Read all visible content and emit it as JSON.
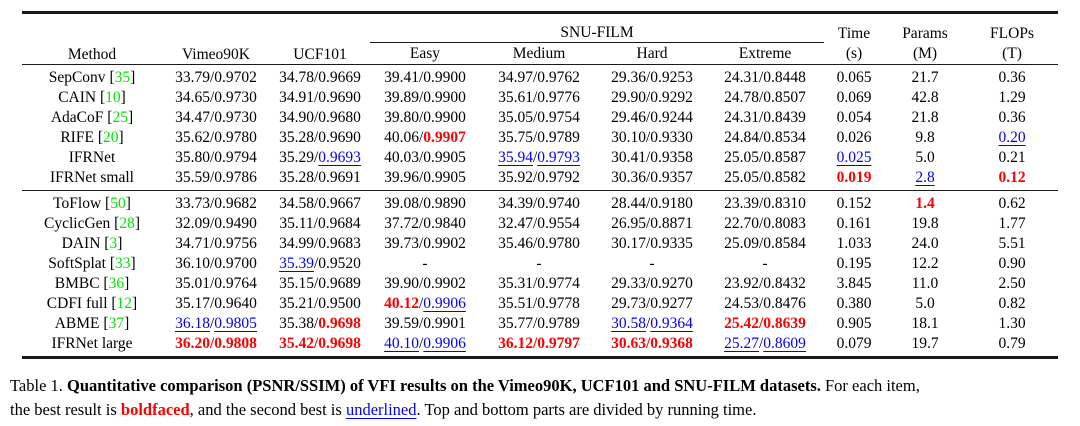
{
  "colors": {
    "best": "#fe0000",
    "second_best": "#0400f9",
    "citation": "#00e400"
  },
  "table": {
    "header": {
      "method": "Method",
      "vimeo90k": "Vimeo90K",
      "ucf101": "UCF101",
      "snufilm": "SNU-FILM",
      "sub": [
        "Easy",
        "Medium",
        "Hard",
        "Extreme"
      ],
      "time_line1": "Time",
      "time_line2": "(s)",
      "params_line1": "Params",
      "params_line2": "(M)",
      "flops_line1": "FLOPs",
      "flops_line2": "(T)"
    },
    "legend": {
      "b": "best (red bold)",
      "u": "second best (blue underlined)",
      "n": "normal"
    },
    "groups": [
      {
        "rows": [
          {
            "method": "SepConv",
            "cite": "35",
            "cells": [
              "33.79/0.9702",
              "34.78/0.9669",
              "39.41/0.9900",
              "34.97/0.9762",
              "29.36/0.9253",
              "24.31/0.8448",
              "0.065",
              "21.7",
              "0.36"
            ]
          },
          {
            "method": "CAIN",
            "cite": "10",
            "cells": [
              "34.65/0.9730",
              "34.91/0.9690",
              "39.89/0.9900",
              "35.61/0.9776",
              "29.90/0.9292",
              "24.78/0.8507",
              "0.069",
              "42.8",
              "1.29"
            ]
          },
          {
            "method": "AdaCoF",
            "cite": "25",
            "cells": [
              "34.47/0.9730",
              "34.90/0.9680",
              "39.80/0.9900",
              "35.05/0.9754",
              "29.46/0.9244",
              "24.31/0.8439",
              "0.054",
              "21.8",
              "0.36"
            ]
          },
          {
            "method": "RIFE",
            "cite": "20",
            "cells": [
              "35.62/0.9780",
              "35.28/0.9690",
              [
                [
                  "40.06/",
                  "n"
                ],
                [
                  "0.9907",
                  "b"
                ]
              ],
              "35.75/0.9789",
              "30.10/0.9330",
              "24.84/0.8534",
              "0.026",
              "9.8",
              [
                [
                  "0.20",
                  "u"
                ]
              ]
            ]
          },
          {
            "method": "IFRNet",
            "cite": null,
            "cells": [
              "35.80/0.9794",
              [
                [
                  "35.29/",
                  "n"
                ],
                [
                  "0.9693",
                  "u"
                ]
              ],
              "40.03/0.9905",
              [
                [
                  "35.94",
                  "u"
                ],
                [
                  "/",
                  "n"
                ],
                [
                  "0.9793",
                  "u"
                ]
              ],
              "30.41/0.9358",
              "25.05/0.8587",
              [
                [
                  "0.025",
                  "u"
                ]
              ],
              "5.0",
              "0.21"
            ]
          },
          {
            "method": "IFRNet small",
            "cite": null,
            "cells": [
              "35.59/0.9786",
              "35.28/0.9691",
              "39.96/0.9905",
              "35.92/0.9792",
              "30.36/0.9357",
              "25.05/0.8582",
              [
                [
                  "0.019",
                  "b"
                ]
              ],
              [
                [
                  "2.8",
                  "u"
                ]
              ],
              [
                [
                  "0.12",
                  "b"
                ]
              ]
            ]
          }
        ]
      },
      {
        "rows": [
          {
            "method": "ToFlow",
            "cite": "50",
            "cells": [
              "33.73/0.9682",
              "34.58/0.9667",
              "39.08/0.9890",
              "34.39/0.9740",
              "28.44/0.9180",
              "23.39/0.8310",
              "0.152",
              [
                [
                  "1.4",
                  "b"
                ]
              ],
              "0.62"
            ]
          },
          {
            "method": "CyclicGen",
            "cite": "28",
            "cells": [
              "32.09/0.9490",
              "35.11/0.9684",
              "37.72/0.9840",
              "32.47/0.9554",
              "26.95/0.8871",
              "22.70/0.8083",
              "0.161",
              "19.8",
              "1.77"
            ]
          },
          {
            "method": "DAIN",
            "cite": "3",
            "cells": [
              "34.71/0.9756",
              "34.99/0.9683",
              "39.73/0.9902",
              "35.46/0.9780",
              "30.17/0.9335",
              "25.09/0.8584",
              "1.033",
              "24.0",
              "5.51"
            ]
          },
          {
            "method": "SoftSplat",
            "cite": "33",
            "cells": [
              "36.10/0.9700",
              [
                [
                  "35.39",
                  "u"
                ],
                [
                  "/0.9520",
                  "n"
                ]
              ],
              "-",
              "-",
              "-",
              "-",
              "0.195",
              "12.2",
              "0.90"
            ]
          },
          {
            "method": "BMBC",
            "cite": "36",
            "cells": [
              "35.01/0.9764",
              "35.15/0.9689",
              "39.90/0.9902",
              "35.31/0.9774",
              "29.33/0.9270",
              "23.92/0.8432",
              "3.845",
              "11.0",
              "2.50"
            ]
          },
          {
            "method": "CDFI full",
            "cite": "12",
            "cells": [
              "35.17/0.9640",
              "35.21/0.9500",
              [
                [
                  "40.12",
                  "b"
                ],
                [
                  "/",
                  "n"
                ],
                [
                  "0.9906",
                  "u"
                ]
              ],
              "35.51/0.9778",
              "29.73/0.9277",
              "24.53/0.8476",
              "0.380",
              "5.0",
              "0.82"
            ]
          },
          {
            "method": "ABME",
            "cite": "37",
            "cells": [
              [
                [
                  "36.18",
                  "u"
                ],
                [
                  "/",
                  "n"
                ],
                [
                  "0.9805",
                  "u"
                ]
              ],
              [
                [
                  "35.38/",
                  "n"
                ],
                [
                  "0.9698",
                  "b"
                ]
              ],
              "39.59/0.9901",
              "35.77/0.9789",
              [
                [
                  "30.58",
                  "u"
                ],
                [
                  "/",
                  "n"
                ],
                [
                  "0.9364",
                  "u"
                ]
              ],
              [
                [
                  "25.42/0.8639",
                  "b"
                ]
              ],
              "0.905",
              "18.1",
              "1.30"
            ]
          },
          {
            "method": "IFRNet large",
            "cite": null,
            "cells": [
              [
                [
                  "36.20/0.9808",
                  "b"
                ]
              ],
              [
                [
                  "35.42/0.9698",
                  "b"
                ]
              ],
              [
                [
                  "40.10",
                  "u"
                ],
                [
                  "/",
                  "n"
                ],
                [
                  "0.9906",
                  "u"
                ]
              ],
              [
                [
                  "36.12/0.9797",
                  "b"
                ]
              ],
              [
                [
                  "30.63/0.9368",
                  "b"
                ]
              ],
              [
                [
                  "25.27",
                  "u"
                ],
                [
                  "/",
                  "n"
                ],
                [
                  "0.8609",
                  "u"
                ]
              ],
              "0.079",
              "19.7",
              "0.79"
            ]
          }
        ]
      }
    ]
  },
  "caption": {
    "lines": [
      [
        [
          "Table 1. ",
          "n"
        ],
        [
          "Quantitative comparison (PSNR/SSIM) of VFI results on the Vimeo90K, UCF101 and SNU-FILM datasets.",
          "bold"
        ],
        [
          " For each item,",
          "n"
        ]
      ],
      [
        [
          "the best result is ",
          "n"
        ],
        [
          "boldfaced",
          "redbold"
        ],
        [
          ", and the second best is ",
          "n"
        ],
        [
          "underlined",
          "blueu"
        ],
        [
          ". Top and bottom parts are divided by running time.",
          "n"
        ]
      ]
    ]
  }
}
